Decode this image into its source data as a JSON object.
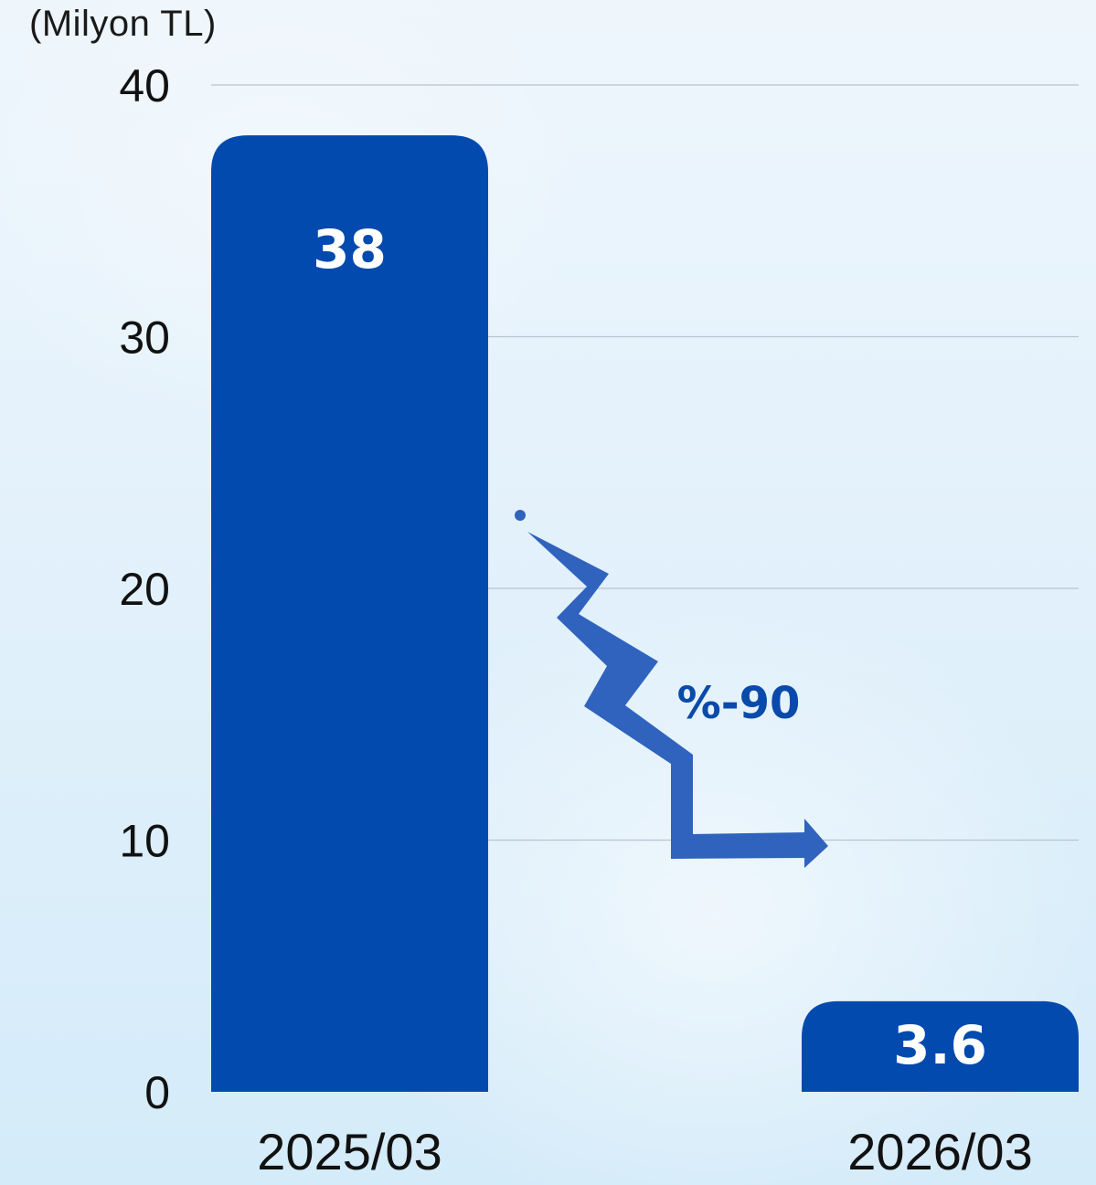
{
  "chart_data": {
    "type": "bar",
    "unit_label": "(Milyon TL)",
    "categories": [
      "2025/03",
      "2026/03"
    ],
    "values": [
      38,
      3.6
    ],
    "value_labels": [
      "38",
      "3.6"
    ],
    "yticks": [
      0,
      10,
      20,
      30,
      40
    ],
    "ylim": [
      0,
      40
    ],
    "grid": true,
    "annotation": "%-90",
    "colors": {
      "bar": "#034AAE",
      "arrow": "#2F63BE",
      "annotation_text": "#0A4AAA",
      "grid": "#b9c4cf",
      "axis_text": "#111111"
    }
  }
}
